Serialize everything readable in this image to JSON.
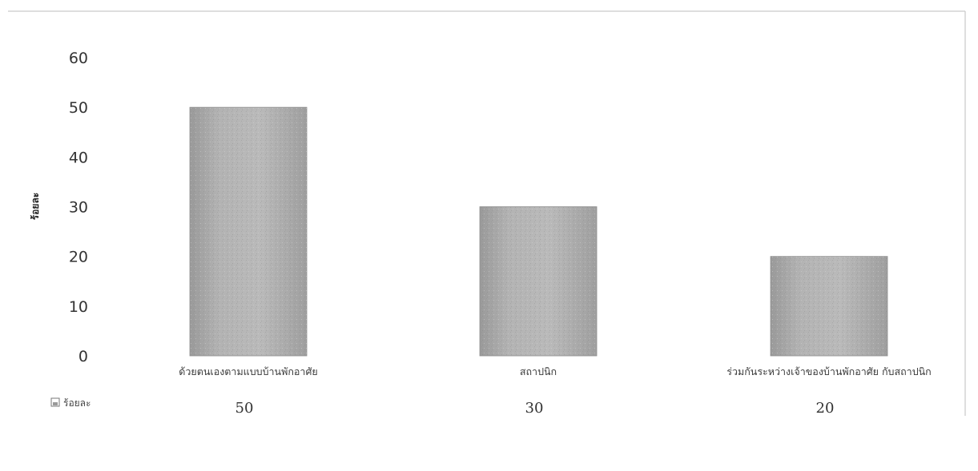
{
  "chart_data": {
    "type": "bar",
    "categories": [
      "ด้วยตนเองตามแบบบ้านพักอาศัย",
      "สถาปนิก",
      "ร่วมกันระหว่างเจ้าของบ้านพักอาศัย กับสถาปนิก"
    ],
    "series": [
      {
        "name": "ร้อยละ",
        "values": [
          50,
          30,
          20
        ]
      }
    ],
    "ylabel": "ร้อยละ",
    "ylim": [
      0,
      60
    ],
    "yticks": [
      0,
      10,
      20,
      30,
      40,
      50,
      60
    ],
    "grid": false,
    "legend": "data-table-below",
    "data_table": {
      "row_label": "ร้อยละ",
      "values": [
        "50",
        "30",
        "20"
      ]
    },
    "colors": {
      "bar_fill": "#a9a9a9",
      "bar_light": "#c2c2c2",
      "bar_dark": "#8f8f8f"
    }
  }
}
